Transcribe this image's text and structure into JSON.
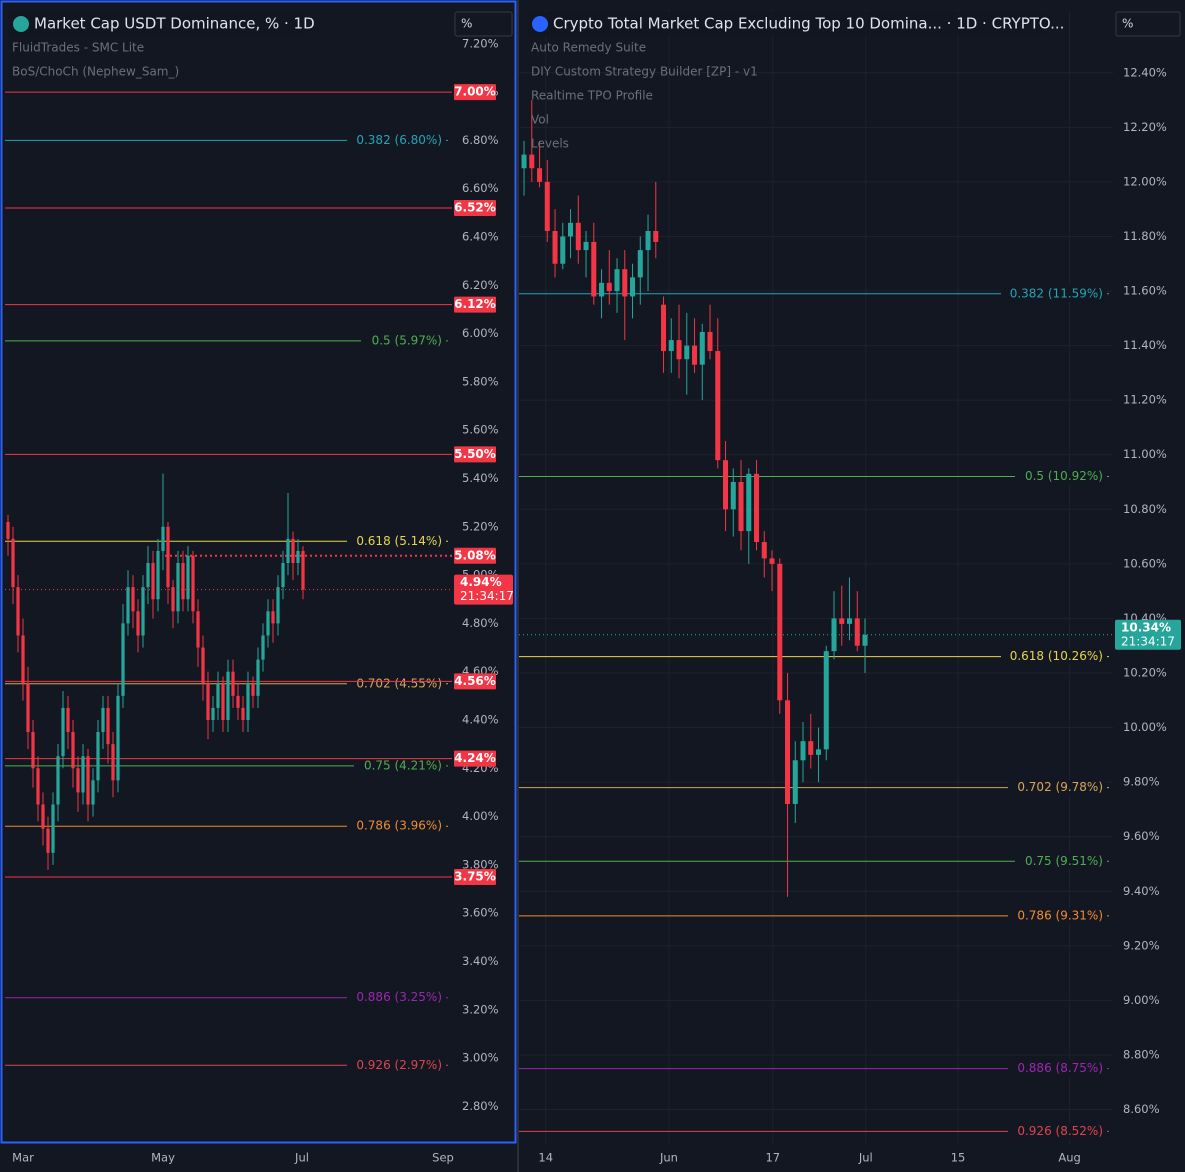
{
  "chart_data": [
    {
      "type": "candlestick",
      "title": "Market Cap USDT Dominance, % · 1D",
      "unit": "%",
      "indicators": [
        "FluidTrades - SMC Lite",
        "BoS/ChoCh (Nephew_Sam_)"
      ],
      "up_color": "#26a69a",
      "down_color": "#f23645",
      "grid": false,
      "selected": true,
      "series": {
        "open": [
          5.22,
          5.15,
          4.95,
          4.75,
          4.55,
          4.35,
          4.2,
          4.05,
          3.95,
          3.85,
          4.05,
          4.25,
          4.45,
          4.35,
          4.2,
          4.1,
          4.25,
          4.05,
          4.15,
          4.35,
          4.45,
          4.3,
          4.15,
          4.5,
          4.8,
          4.95,
          4.85,
          4.75,
          4.95,
          5.05,
          4.9,
          5.1,
          5.2,
          4.95,
          4.85,
          5.05,
          4.9,
          5.08,
          4.85,
          4.7,
          4.55,
          4.4,
          4.45,
          4.55,
          4.4,
          4.6,
          4.5,
          4.45,
          4.4,
          4.55,
          4.5,
          4.65,
          4.75,
          4.85,
          4.8,
          4.95,
          5.05,
          5.15,
          5.05,
          5.1
        ],
        "high": [
          5.25,
          5.2,
          5.0,
          4.82,
          4.62,
          4.4,
          4.25,
          4.1,
          4.0,
          4.1,
          4.3,
          4.52,
          4.5,
          4.4,
          4.25,
          4.3,
          4.28,
          4.2,
          4.4,
          4.5,
          4.5,
          4.35,
          4.55,
          4.88,
          5.02,
          5.0,
          4.9,
          5.0,
          5.12,
          5.1,
          5.15,
          5.42,
          5.22,
          4.98,
          5.1,
          5.1,
          5.12,
          5.1,
          4.9,
          4.75,
          4.6,
          4.5,
          4.6,
          4.58,
          4.65,
          4.65,
          4.55,
          4.5,
          4.6,
          4.58,
          4.7,
          4.8,
          4.9,
          4.9,
          5.0,
          5.1,
          5.34,
          5.18,
          5.15,
          5.12
        ],
        "low": [
          5.08,
          4.88,
          4.68,
          4.48,
          4.28,
          4.12,
          3.98,
          3.88,
          3.78,
          3.8,
          3.98,
          4.2,
          4.28,
          4.12,
          4.02,
          4.05,
          3.98,
          4.0,
          4.1,
          4.28,
          4.22,
          4.08,
          4.1,
          4.45,
          4.75,
          4.78,
          4.68,
          4.7,
          4.88,
          4.82,
          4.85,
          5.02,
          4.88,
          4.78,
          4.8,
          4.85,
          4.85,
          4.8,
          4.62,
          4.48,
          4.32,
          4.35,
          4.4,
          4.35,
          4.35,
          4.45,
          4.4,
          4.35,
          4.35,
          4.45,
          4.45,
          4.6,
          4.7,
          4.72,
          4.75,
          4.9,
          5.0,
          4.98,
          5.0,
          4.9
        ],
        "close": [
          5.15,
          4.95,
          4.75,
          4.55,
          4.35,
          4.2,
          4.05,
          3.95,
          3.85,
          4.05,
          4.25,
          4.45,
          4.35,
          4.2,
          4.1,
          4.25,
          4.05,
          4.15,
          4.35,
          4.45,
          4.3,
          4.15,
          4.5,
          4.8,
          4.95,
          4.85,
          4.75,
          4.95,
          5.05,
          4.9,
          5.1,
          5.2,
          4.95,
          4.85,
          5.05,
          4.9,
          5.08,
          4.85,
          4.7,
          4.55,
          4.4,
          4.45,
          4.55,
          4.4,
          4.6,
          4.5,
          4.45,
          4.4,
          4.55,
          4.5,
          4.65,
          4.75,
          4.85,
          4.8,
          4.95,
          5.05,
          5.15,
          5.05,
          5.1,
          4.94
        ]
      },
      "xlim": [
        -0.6,
        88.8
      ],
      "xticks": [
        {
          "value": 3,
          "label": "Mar"
        },
        {
          "value": 31,
          "label": "May"
        },
        {
          "value": 58.8,
          "label": "Jul"
        },
        {
          "value": 87,
          "label": "Sep"
        }
      ],
      "ylim": [
        2.64,
        7.34
      ],
      "yticks": [
        {
          "value": 7.2,
          "label": "7.20%"
        },
        {
          "value": 7.0,
          "label": "7.00%"
        },
        {
          "value": 6.8,
          "label": "6.80%"
        },
        {
          "value": 6.6,
          "label": "6.60%"
        },
        {
          "value": 6.4,
          "label": "6.40%"
        },
        {
          "value": 6.2,
          "label": "6.20%"
        },
        {
          "value": 6.0,
          "label": "6.00%"
        },
        {
          "value": 5.8,
          "label": "5.80%"
        },
        {
          "value": 5.6,
          "label": "5.60%"
        },
        {
          "value": 5.4,
          "label": "5.40%"
        },
        {
          "value": 5.2,
          "label": "5.20%"
        },
        {
          "value": 5.0,
          "label": "5.00%"
        },
        {
          "value": 4.8,
          "label": "4.80%"
        },
        {
          "value": 4.6,
          "label": "4.60%"
        },
        {
          "value": 4.4,
          "label": "4.40%"
        },
        {
          "value": 4.2,
          "label": "4.20%"
        },
        {
          "value": 4.0,
          "label": "4.00%"
        },
        {
          "value": 3.8,
          "label": "3.80%"
        },
        {
          "value": 3.6,
          "label": "3.60%"
        },
        {
          "value": 3.4,
          "label": "3.40%"
        },
        {
          "value": 3.2,
          "label": "3.20%"
        },
        {
          "value": 3.0,
          "label": "3.00%"
        },
        {
          "value": 2.8,
          "label": "2.80%"
        }
      ],
      "levels": [
        {
          "value": 6.8,
          "label": "0.382 (6.80%)",
          "color": "#22a5b8"
        },
        {
          "value": 5.97,
          "label": "0.5 (5.97%)",
          "color": "#4caf50"
        },
        {
          "value": 5.14,
          "label": "0.618 (5.14%)",
          "color": "#e8d44d"
        },
        {
          "value": 4.55,
          "label": "0.702 (4.55%)",
          "color": "#d7a55a"
        },
        {
          "value": 4.21,
          "label": "0.75 (4.21%)",
          "color": "#4caf50"
        },
        {
          "value": 3.96,
          "label": "0.786 (3.96%)",
          "color": "#f08c2e"
        },
        {
          "value": 3.25,
          "label": "0.886 (3.25%)",
          "color": "#9c27b0"
        },
        {
          "value": 2.97,
          "label": "0.926 (2.97%)",
          "color": "#e0434f"
        }
      ],
      "price_lines": [
        {
          "value": 7.0,
          "label": "7.00%"
        },
        {
          "value": 6.52,
          "label": "6.52%"
        },
        {
          "value": 6.12,
          "label": "6.12%"
        },
        {
          "value": 5.5,
          "label": "5.50%"
        },
        {
          "value": 5.08,
          "label": "5.08%",
          "dotted": true
        },
        {
          "value": 4.56,
          "label": "4.56%"
        },
        {
          "value": 4.24,
          "label": "4.24%"
        },
        {
          "value": 3.75,
          "label": "3.75%"
        }
      ],
      "price_line_color": "#f23645",
      "last_price": {
        "value": 4.94,
        "label": "4.94%",
        "countdown": "21:34:17",
        "color": "#f23645"
      }
    },
    {
      "type": "candlestick",
      "title": "Crypto Total Market Cap Excluding Top 10 Domina... · 1D · CRYPTO...",
      "unit": "%",
      "indicators": [
        "Auto Remedy Suite",
        "DIY Custom Strategy Builder [ZP] - v1",
        "Realtime TPO Profile",
        "Vol",
        "Levels"
      ],
      "up_color": "#26a69a",
      "down_color": "#f23645",
      "grid": true,
      "selected": false,
      "series": {
        "open": [
          12.05,
          12.1,
          12.05,
          12.0,
          11.82,
          11.7,
          11.8,
          11.85,
          11.75,
          11.78,
          11.58,
          11.63,
          11.6,
          11.68,
          11.58,
          11.65,
          11.75,
          11.82,
          11.55,
          11.38,
          11.42,
          11.35,
          11.4,
          11.33,
          11.45,
          11.38,
          10.98,
          10.8,
          10.9,
          10.72,
          10.93,
          10.68,
          10.62,
          10.6,
          10.1,
          9.72,
          9.88,
          9.95,
          9.9,
          9.92,
          10.28,
          10.4,
          10.38,
          10.4,
          10.3
        ],
        "high": [
          12.15,
          12.3,
          12.15,
          12.08,
          11.9,
          11.85,
          11.9,
          11.95,
          11.82,
          11.85,
          11.68,
          11.75,
          11.72,
          11.75,
          11.7,
          11.8,
          11.88,
          12.0,
          11.58,
          11.5,
          11.55,
          11.52,
          11.5,
          11.48,
          11.55,
          11.5,
          11.05,
          10.95,
          10.98,
          10.95,
          10.98,
          10.72,
          10.65,
          10.62,
          10.2,
          9.95,
          10.02,
          10.05,
          10.0,
          10.3,
          10.5,
          10.52,
          10.55,
          10.5,
          10.4
        ],
        "low": [
          11.95,
          12.0,
          11.98,
          11.78,
          11.65,
          11.68,
          11.72,
          11.7,
          11.65,
          11.55,
          11.5,
          11.55,
          11.52,
          11.42,
          11.5,
          11.55,
          11.6,
          11.72,
          11.3,
          11.3,
          11.28,
          11.22,
          11.3,
          11.2,
          11.35,
          10.95,
          10.72,
          10.7,
          10.65,
          10.6,
          10.65,
          10.55,
          10.5,
          10.05,
          9.38,
          9.65,
          9.8,
          9.85,
          9.8,
          9.88,
          10.25,
          10.3,
          10.32,
          10.28,
          10.2
        ],
        "close": [
          12.1,
          12.05,
          12.0,
          11.82,
          11.7,
          11.8,
          11.85,
          11.75,
          11.78,
          11.58,
          11.63,
          11.6,
          11.68,
          11.58,
          11.65,
          11.75,
          11.82,
          11.78,
          11.38,
          11.42,
          11.35,
          11.4,
          11.33,
          11.45,
          11.38,
          10.98,
          10.8,
          10.9,
          10.72,
          10.93,
          10.68,
          10.62,
          10.6,
          10.1,
          9.72,
          9.88,
          9.95,
          9.9,
          9.92,
          10.28,
          10.4,
          10.38,
          10.4,
          10.3,
          10.34
        ]
      },
      "xlim": [
        -0.65,
        76
      ],
      "xticks": [
        {
          "value": 2.8,
          "label": "14"
        },
        {
          "value": 18.7,
          "label": "Jun"
        },
        {
          "value": 32.1,
          "label": "17"
        },
        {
          "value": 44.1,
          "label": "Jul"
        },
        {
          "value": 56,
          "label": "15"
        },
        {
          "value": 70.4,
          "label": "Aug"
        }
      ],
      "ylim": [
        8.47,
        12.63
      ],
      "yticks": [
        {
          "value": 12.4,
          "label": "12.40%"
        },
        {
          "value": 12.2,
          "label": "12.20%"
        },
        {
          "value": 12.0,
          "label": "12.00%"
        },
        {
          "value": 11.8,
          "label": "11.80%"
        },
        {
          "value": 11.6,
          "label": "11.60%"
        },
        {
          "value": 11.4,
          "label": "11.40%"
        },
        {
          "value": 11.2,
          "label": "11.20%"
        },
        {
          "value": 11.0,
          "label": "11.00%"
        },
        {
          "value": 10.8,
          "label": "10.80%"
        },
        {
          "value": 10.6,
          "label": "10.60%"
        },
        {
          "value": 10.4,
          "label": "10.40%"
        },
        {
          "value": 10.2,
          "label": "10.20%"
        },
        {
          "value": 10.0,
          "label": "10.00%"
        },
        {
          "value": 9.8,
          "label": "9.80%"
        },
        {
          "value": 9.6,
          "label": "9.60%"
        },
        {
          "value": 9.4,
          "label": "9.40%"
        },
        {
          "value": 9.2,
          "label": "9.20%"
        },
        {
          "value": 9.0,
          "label": "9.00%"
        },
        {
          "value": 8.8,
          "label": "8.80%"
        },
        {
          "value": 8.6,
          "label": "8.60%"
        }
      ],
      "levels": [
        {
          "value": 11.59,
          "label": "0.382 (11.59%)",
          "color": "#22a5b8"
        },
        {
          "value": 10.92,
          "label": "0.5 (10.92%)",
          "color": "#4caf50"
        },
        {
          "value": 10.26,
          "label": "0.618 (10.26%)",
          "color": "#e8d44d"
        },
        {
          "value": 9.78,
          "label": "0.702 (9.78%)",
          "color": "#d7a55a"
        },
        {
          "value": 9.51,
          "label": "0.75 (9.51%)",
          "color": "#4caf50"
        },
        {
          "value": 9.31,
          "label": "0.786 (9.31%)",
          "color": "#f08c2e"
        },
        {
          "value": 8.75,
          "label": "0.886 (8.75%)",
          "color": "#9c27b0"
        },
        {
          "value": 8.52,
          "label": "0.926 (8.52%)",
          "color": "#e0434f"
        }
      ],
      "price_lines": [],
      "price_line_color": "#f23645",
      "last_price": {
        "value": 10.34,
        "label": "10.34%",
        "countdown": "21:34:17",
        "color": "#26a69a"
      }
    }
  ]
}
